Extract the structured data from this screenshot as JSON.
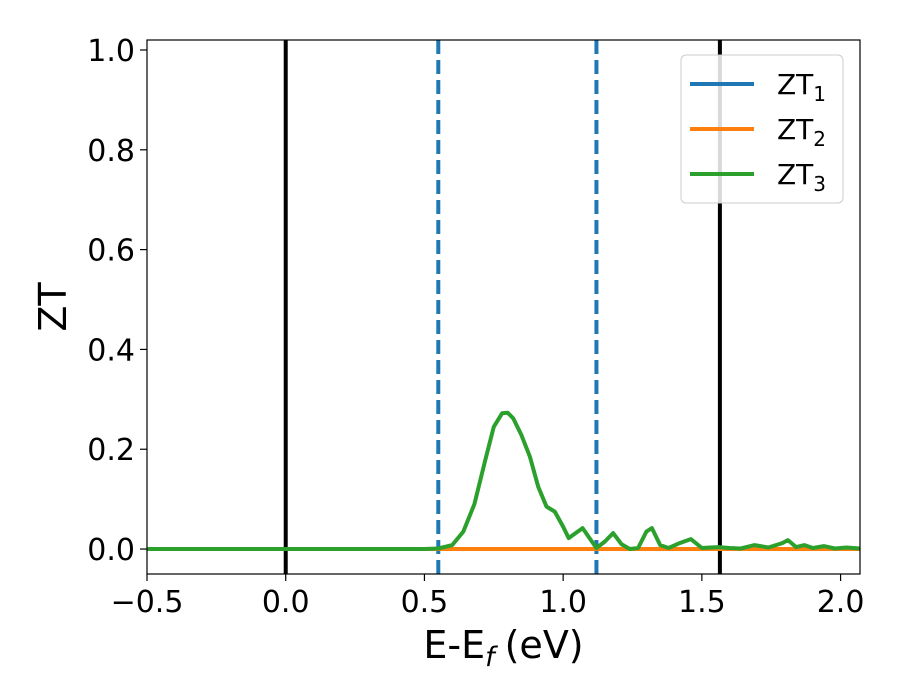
{
  "chart_data": {
    "type": "line",
    "xlabel": "E-E",
    "xlabel_sub": "f",
    "xlabel_unit": "(eV)",
    "ylabel": "ZT",
    "xlim": [
      -0.5,
      2.07
    ],
    "ylim": [
      -0.05,
      1.02
    ],
    "x_ticks": [
      -0.5,
      0.0,
      0.5,
      1.0,
      1.5,
      2.0
    ],
    "x_tick_labels": [
      "−0.5",
      "0.0",
      "0.5",
      "1.0",
      "1.5",
      "2.0"
    ],
    "y_ticks": [
      0.0,
      0.2,
      0.4,
      0.6,
      0.8,
      1.0
    ],
    "y_tick_labels": [
      "0.0",
      "0.2",
      "0.4",
      "0.6",
      "0.8",
      "1.0"
    ],
    "grid": false,
    "legend_position": "top-right",
    "vlines": [
      {
        "x": 0.0,
        "style": "solid",
        "color": "#000000"
      },
      {
        "x": 1.565,
        "style": "solid",
        "color": "#000000"
      },
      {
        "x": 0.55,
        "style": "dashed",
        "color": "#1f77b4"
      },
      {
        "x": 1.12,
        "style": "dashed",
        "color": "#1f77b4"
      }
    ],
    "series": [
      {
        "name": "ZT",
        "name_sub": "1",
        "color": "#1f77b4",
        "x": [
          -0.5,
          2.07
        ],
        "y": [
          0.0,
          0.0
        ]
      },
      {
        "name": "ZT",
        "name_sub": "2",
        "color": "#ff7f0e",
        "x": [
          -0.5,
          2.07
        ],
        "y": [
          0.0,
          0.0
        ]
      },
      {
        "name": "ZT",
        "name_sub": "3",
        "color": "#2ca02c",
        "x": [
          -0.5,
          0.5,
          0.55,
          0.6,
          0.64,
          0.68,
          0.72,
          0.75,
          0.78,
          0.8,
          0.82,
          0.85,
          0.88,
          0.91,
          0.94,
          0.97,
          1.0,
          1.02,
          1.04,
          1.07,
          1.1,
          1.12,
          1.15,
          1.18,
          1.21,
          1.24,
          1.27,
          1.3,
          1.32,
          1.35,
          1.38,
          1.42,
          1.46,
          1.5,
          1.53,
          1.56,
          1.6,
          1.64,
          1.69,
          1.74,
          1.79,
          1.81,
          1.84,
          1.87,
          1.9,
          1.94,
          1.98,
          2.02,
          2.07
        ],
        "y": [
          0.0,
          0.0,
          0.001,
          0.008,
          0.035,
          0.09,
          0.18,
          0.245,
          0.272,
          0.273,
          0.262,
          0.228,
          0.185,
          0.125,
          0.085,
          0.075,
          0.045,
          0.022,
          0.03,
          0.042,
          0.018,
          0.002,
          0.015,
          0.032,
          0.01,
          0.0,
          0.002,
          0.035,
          0.042,
          0.008,
          0.002,
          0.012,
          0.02,
          0.002,
          0.003,
          0.004,
          0.002,
          0.001,
          0.008,
          0.003,
          0.012,
          0.018,
          0.004,
          0.008,
          0.002,
          0.006,
          0.001,
          0.003,
          0.001
        ]
      }
    ]
  }
}
